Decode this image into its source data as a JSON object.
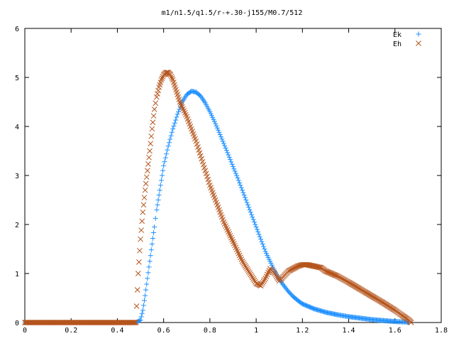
{
  "chart_data": {
    "type": "scatter",
    "title": "m1/n1.5/q1.5/r-+.30-j155/M0.7/512",
    "xlabel": "",
    "ylabel": "",
    "xlim": [
      0,
      1.8
    ],
    "ylim": [
      0,
      6
    ],
    "x_ticks": [
      "0",
      "0.2",
      "0.4",
      "0.6",
      "0.8",
      "1",
      "1.2",
      "1.4",
      "1.6",
      "1.8"
    ],
    "y_ticks": [
      "0",
      "1",
      "2",
      "3",
      "4",
      "5",
      "6"
    ],
    "grid": false,
    "legend_position": "top-right",
    "series": [
      {
        "name": "Ek",
        "marker": "+",
        "color": "#1e90ff",
        "points": [
          [
            0.0,
            0
          ],
          [
            0.1,
            0
          ],
          [
            0.2,
            0
          ],
          [
            0.3,
            0
          ],
          [
            0.4,
            0
          ],
          [
            0.48,
            0
          ],
          [
            0.5,
            0.05
          ],
          [
            0.51,
            0.25
          ],
          [
            0.52,
            0.55
          ],
          [
            0.53,
            0.9
          ],
          [
            0.54,
            1.25
          ],
          [
            0.55,
            1.6
          ],
          [
            0.56,
            1.95
          ],
          [
            0.57,
            2.3
          ],
          [
            0.58,
            2.6
          ],
          [
            0.59,
            2.9
          ],
          [
            0.6,
            3.2
          ],
          [
            0.62,
            3.6
          ],
          [
            0.64,
            3.95
          ],
          [
            0.66,
            4.25
          ],
          [
            0.68,
            4.5
          ],
          [
            0.7,
            4.65
          ],
          [
            0.72,
            4.72
          ],
          [
            0.74,
            4.7
          ],
          [
            0.76,
            4.62
          ],
          [
            0.78,
            4.48
          ],
          [
            0.8,
            4.3
          ],
          [
            0.82,
            4.1
          ],
          [
            0.84,
            3.88
          ],
          [
            0.86,
            3.65
          ],
          [
            0.88,
            3.42
          ],
          [
            0.9,
            3.18
          ],
          [
            0.92,
            2.95
          ],
          [
            0.94,
            2.7
          ],
          [
            0.96,
            2.45
          ],
          [
            0.98,
            2.2
          ],
          [
            1.0,
            1.95
          ],
          [
            1.02,
            1.7
          ],
          [
            1.04,
            1.45
          ],
          [
            1.06,
            1.25
          ],
          [
            1.08,
            1.05
          ],
          [
            1.1,
            0.88
          ],
          [
            1.12,
            0.75
          ],
          [
            1.14,
            0.63
          ],
          [
            1.16,
            0.53
          ],
          [
            1.18,
            0.45
          ],
          [
            1.2,
            0.38
          ],
          [
            1.25,
            0.28
          ],
          [
            1.3,
            0.21
          ],
          [
            1.35,
            0.16
          ],
          [
            1.4,
            0.12
          ],
          [
            1.45,
            0.09
          ],
          [
            1.5,
            0.06
          ],
          [
            1.55,
            0.04
          ],
          [
            1.6,
            0.02
          ],
          [
            1.65,
            0.01
          ],
          [
            1.66,
            0.0
          ]
        ]
      },
      {
        "name": "Eh",
        "marker": "x",
        "color": "#b5551d",
        "points": [
          [
            0.0,
            0
          ],
          [
            0.1,
            0
          ],
          [
            0.2,
            0
          ],
          [
            0.3,
            0
          ],
          [
            0.4,
            0
          ],
          [
            0.48,
            0
          ],
          [
            0.49,
            1.0
          ],
          [
            0.5,
            1.7
          ],
          [
            0.51,
            2.25
          ],
          [
            0.52,
            2.7
          ],
          [
            0.53,
            3.1
          ],
          [
            0.54,
            3.5
          ],
          [
            0.55,
            3.95
          ],
          [
            0.56,
            4.35
          ],
          [
            0.57,
            4.6
          ],
          [
            0.58,
            4.8
          ],
          [
            0.59,
            4.95
          ],
          [
            0.6,
            5.05
          ],
          [
            0.61,
            5.1
          ],
          [
            0.62,
            5.1
          ],
          [
            0.63,
            5.05
          ],
          [
            0.64,
            4.95
          ],
          [
            0.65,
            4.8
          ],
          [
            0.66,
            4.65
          ],
          [
            0.67,
            4.5
          ],
          [
            0.68,
            4.4
          ],
          [
            0.7,
            4.2
          ],
          [
            0.72,
            3.95
          ],
          [
            0.74,
            3.7
          ],
          [
            0.76,
            3.4
          ],
          [
            0.78,
            3.1
          ],
          [
            0.8,
            2.8
          ],
          [
            0.82,
            2.55
          ],
          [
            0.84,
            2.3
          ],
          [
            0.86,
            2.05
          ],
          [
            0.88,
            1.85
          ],
          [
            0.9,
            1.65
          ],
          [
            0.92,
            1.45
          ],
          [
            0.94,
            1.25
          ],
          [
            0.96,
            1.1
          ],
          [
            0.98,
            0.95
          ],
          [
            1.0,
            0.8
          ],
          [
            1.02,
            0.75
          ],
          [
            1.04,
            0.9
          ],
          [
            1.06,
            1.1
          ],
          [
            1.08,
            1.0
          ],
          [
            1.1,
            0.85
          ],
          [
            1.12,
            0.95
          ],
          [
            1.14,
            1.05
          ],
          [
            1.16,
            1.1
          ],
          [
            1.18,
            1.15
          ],
          [
            1.2,
            1.18
          ],
          [
            1.22,
            1.18
          ],
          [
            1.25,
            1.15
          ],
          [
            1.28,
            1.12
          ],
          [
            1.3,
            1.05
          ],
          [
            1.35,
            0.95
          ],
          [
            1.4,
            0.82
          ],
          [
            1.45,
            0.68
          ],
          [
            1.5,
            0.54
          ],
          [
            1.55,
            0.4
          ],
          [
            1.6,
            0.25
          ],
          [
            1.63,
            0.15
          ],
          [
            1.66,
            0.05
          ],
          [
            1.67,
            0.0
          ]
        ]
      }
    ]
  }
}
